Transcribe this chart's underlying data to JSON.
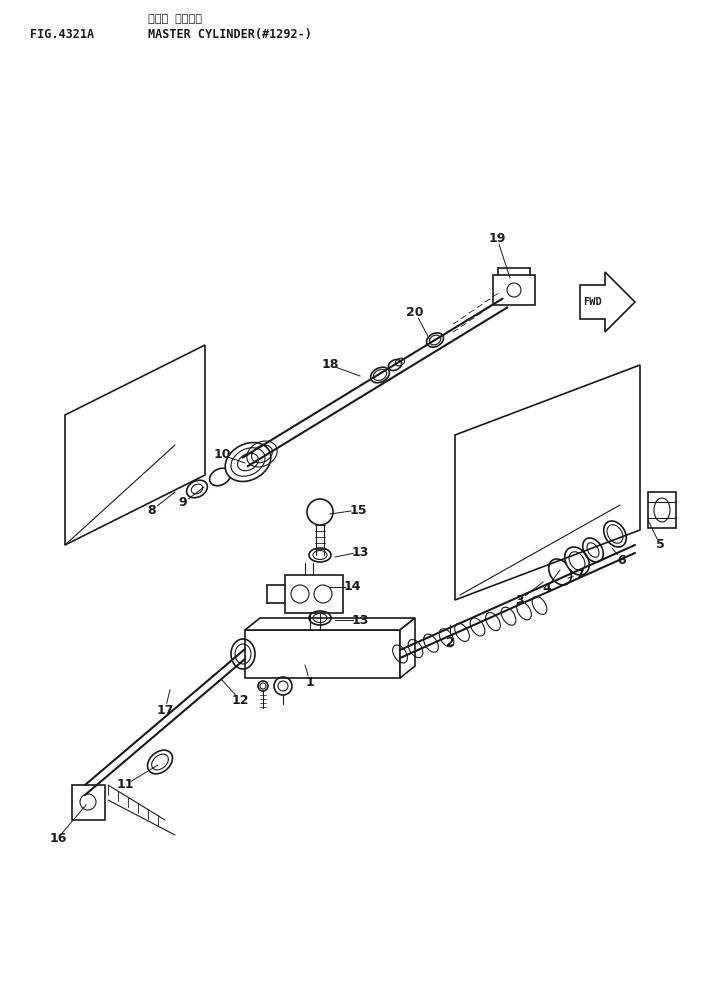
{
  "title_jp": "マスタ シリンダ",
  "title_en": "MASTER CYLINDER(#1292-)",
  "fig_label": "FIG.4321A",
  "bg_color": "#ffffff",
  "line_color": "#1a1a1a",
  "fig_width": 7.1,
  "fig_height": 9.83,
  "dpi": 100
}
